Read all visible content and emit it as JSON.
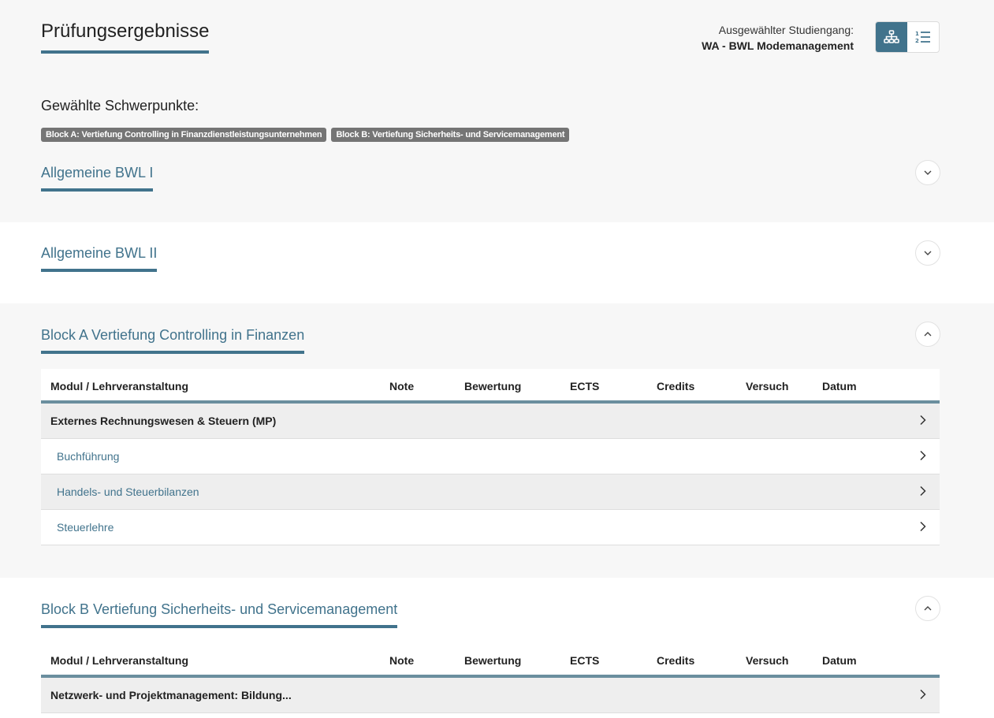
{
  "header": {
    "title": "Prüfungsergebnisse",
    "studiengang_label": "Ausgewählter Studiengang:",
    "studiengang_value": "WA - BWL Modemanagement",
    "view_toggle": [
      "hierarchy-icon",
      "numbered-list-icon"
    ]
  },
  "schwerpunkte": {
    "label": "Gewählte Schwerpunkte:",
    "badges": [
      "Block A: Vertiefung Controlling in Finanzdienstleistungsunternehmen",
      "Block B: Vertiefung Sicherheits- und Servicemanagement"
    ]
  },
  "sections": [
    {
      "title": "Allgemeine BWL I",
      "state": "collapsed"
    },
    {
      "title": "Allgemeine BWL II",
      "state": "collapsed"
    },
    {
      "title": "Block A Vertiefung Controlling in Finanzen",
      "state": "expanded",
      "columns": [
        "Modul / Lehrveranstaltung",
        "Note",
        "Bewertung",
        "ECTS",
        "Credits",
        "Versuch",
        "Datum"
      ],
      "rows": [
        {
          "type": "module",
          "name": "Externes Rechnungswesen & Steuern (MP)"
        },
        {
          "type": "course",
          "name": "Buchführung"
        },
        {
          "type": "course",
          "name": "Handels- und Steuerbilanzen"
        },
        {
          "type": "course",
          "name": "Steuerlehre"
        }
      ]
    },
    {
      "title": "Block B Vertiefung Sicherheits- und Servicemanagement",
      "state": "expanded",
      "columns": [
        "Modul / Lehrveranstaltung",
        "Note",
        "Bewertung",
        "ECTS",
        "Credits",
        "Versuch",
        "Datum"
      ],
      "rows": [
        {
          "type": "module",
          "name": "Netzwerk- und Projektmanagement: Bildung..."
        }
      ]
    }
  ],
  "colors": {
    "accent": "#41738c",
    "badge": "#757575",
    "band_grey": "#f7f7f7"
  }
}
